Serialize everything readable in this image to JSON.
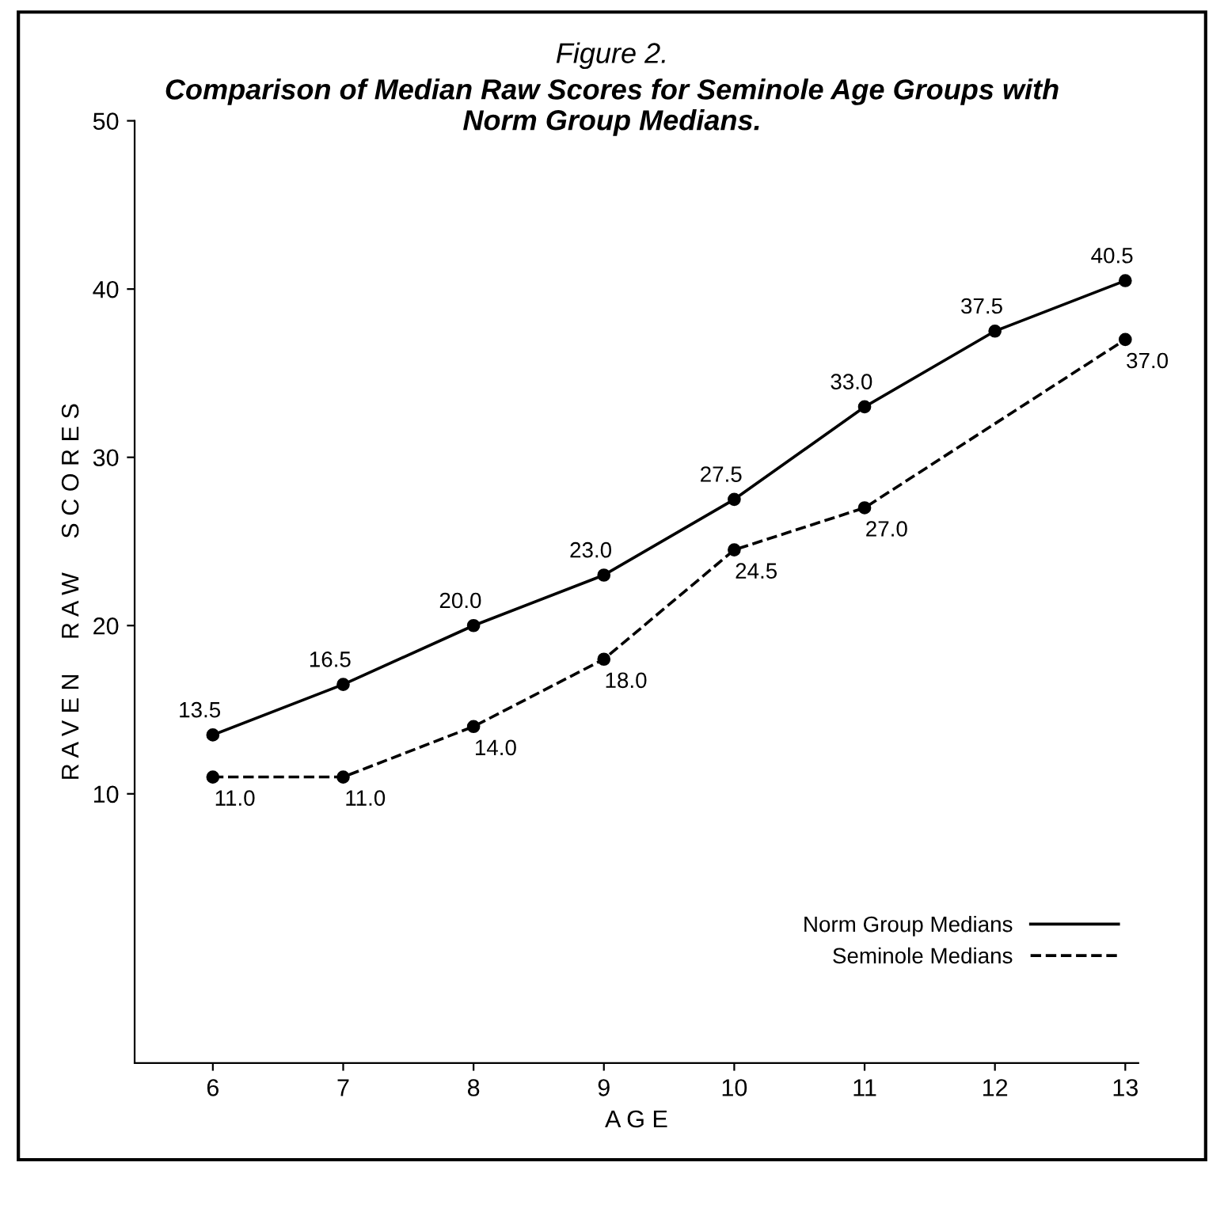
{
  "chart_data": {
    "type": "line",
    "title": "Figure 2.",
    "subtitle": "Comparison of Median Raw Scores for Seminole Age Groups with\nNorm Group Medians.",
    "xlabel": "A G E",
    "ylabel": "R A V E N     R A W     S C O R E S",
    "xlim": [
      5.4,
      13.1
    ],
    "xticks": [
      6,
      7,
      8,
      9,
      10,
      11,
      12,
      13
    ],
    "ylim": [
      -6,
      50
    ],
    "yticks": [
      10,
      20,
      30,
      40,
      50
    ],
    "grid": false,
    "legend": "bottom right",
    "marker": "circle",
    "series": [
      {
        "name": "Norm Group Medians",
        "color": "#000000",
        "line_style": "solid",
        "x": [
          6,
          7,
          8,
          9,
          10,
          11,
          12,
          13
        ],
        "values": [
          13.5,
          16.5,
          20.0,
          23.0,
          27.5,
          33.0,
          37.5,
          40.5
        ],
        "value_labels": [
          "13.5",
          "16.5",
          "20.0",
          "23.0",
          "27.5",
          "33.0",
          "37.5",
          "40.5"
        ]
      },
      {
        "name": "Seminole Medians",
        "color": "#000000",
        "line_style": "dashed",
        "x": [
          6,
          7,
          8,
          9,
          10,
          11,
          13
        ],
        "values": [
          11.0,
          11.0,
          14.0,
          18.0,
          24.5,
          27.0,
          37.0
        ],
        "value_labels": [
          "11.0",
          "11.0",
          "14.0",
          "18.0",
          "24.5",
          "27.0",
          "37.0"
        ]
      }
    ]
  }
}
